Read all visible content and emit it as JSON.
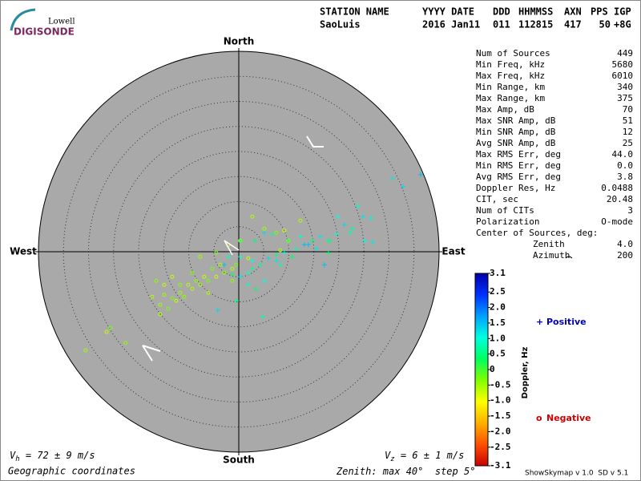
{
  "logo": {
    "top": "Lowell",
    "bottom": "DIGISONDE"
  },
  "header": {
    "labels": [
      "STATION NAME",
      "YYYY DATE",
      "DDD",
      "HHMMSS",
      "AXN",
      "PPS",
      "IGP"
    ],
    "values": [
      "SaoLuis",
      "2016 Jan11",
      "011",
      "112815",
      "417",
      "50",
      "+8G"
    ]
  },
  "stats": {
    "rows": [
      [
        "Num of Sources",
        "449"
      ],
      [
        "Min Freq, kHz",
        "5680"
      ],
      [
        "Max Freq, kHz",
        "6010"
      ],
      [
        "Min Range, km",
        "340"
      ],
      [
        "Max Range, km",
        "375"
      ],
      [
        "Max Amp, dB",
        "70"
      ],
      [
        "Max SNR Amp, dB",
        "51"
      ],
      [
        "Min SNR Amp, dB",
        "12"
      ],
      [
        "Avg SNR Amp, dB",
        "25"
      ],
      [
        "Max RMS Err, deg",
        "44.0"
      ],
      [
        "Min RMS Err, deg",
        "0.0"
      ],
      [
        "Avg RMS Err, deg",
        "3.8"
      ],
      [
        "Doppler Res, Hz",
        "0.0488"
      ],
      [
        "CIT, sec",
        "20.48"
      ],
      [
        "Num of CITs",
        "3"
      ],
      [
        "Polarization",
        "O-mode"
      ]
    ],
    "center_title": "Center of Sources, deg:",
    "center_rows": [
      [
        "Zenith",
        "4.0"
      ],
      [
        "Azimuth",
        "200"
      ]
    ]
  },
  "footer": {
    "vh": {
      "symbol": "V",
      "sub": "h",
      "text": " = 72 ± 9 m/s"
    },
    "vz": {
      "symbol": "V",
      "sub": "z",
      "text": " = 6 ± 1 m/s"
    },
    "coordinates": "Geographic coordinates",
    "zenith_prefix": "Zenith: max ",
    "degree": "°",
    "step_prefix": "  step ",
    "version": "ShowSkymap v 1.0  SD v 5.1"
  },
  "chart_data": {
    "type": "scatter",
    "directions": {
      "north": "North",
      "south": "South",
      "west": "West",
      "east": "East"
    },
    "zenith_max": 40,
    "step": 5,
    "series": [
      {
        "name": "Positive",
        "color": "#0000c0",
        "marker": "+",
        "x": [
          36.3,
          30.7,
          32.8,
          23.8,
          19.8,
          24.8,
          26.4,
          22.2,
          25.1,
          26.7,
          17.9,
          19.5,
          16.3,
          14.7,
          13.1,
          11.5,
          9.1,
          7.5,
          5.9,
          4.3,
          2.7,
          1.9,
          0.3,
          -1.3,
          -2.9,
          -2.1,
          0.3,
          3.2,
          5.1,
          6.7,
          9.9,
          12.3,
          15.5,
          17.9,
          17.1,
          8.3,
          5.1,
          3.5,
          -4.2,
          4.8,
          -0.5,
          1.9,
          7.5,
          10.7,
          13.9,
          0.3,
          2.7,
          18.2,
          21.1,
          22.7
        ],
        "y": [
          15.4,
          14.7,
          13.0,
          9.1,
          7.0,
          7.0,
          6.7,
          3.8,
          2.2,
          1.9,
          2.2,
          3.5,
          3.0,
          2.2,
          1.4,
          0.6,
          -0.2,
          -0.6,
          -1.3,
          -2.6,
          -3.4,
          -4.2,
          -5.0,
          -4.5,
          -2.6,
          -1.0,
          -1.0,
          2.2,
          3.8,
          3.5,
          2.2,
          3.0,
          0.6,
          -0.2,
          -2.6,
          -2.6,
          -5.8,
          -7.4,
          -11.7,
          -13.0,
          -9.8,
          -6.6,
          -1.8,
          -1.0,
          1.4,
          2.2,
          -1.8,
          2.2,
          5.4,
          4.6
        ],
        "doppler": [
          1.5,
          1.2,
          1.3,
          0.9,
          1.0,
          1.2,
          1.1,
          0.8,
          1.0,
          1.2,
          0.6,
          0.9,
          1.2,
          0.4,
          1.5,
          0.8,
          1.0,
          0.5,
          1.3,
          0.7,
          0.6,
          0.9,
          1.2,
          0.4,
          1.5,
          0.8,
          1.0,
          0.5,
          1.3,
          0.7,
          0.6,
          0.9,
          1.2,
          0.4,
          1.5,
          0.8,
          1.0,
          0.5,
          1.3,
          0.7,
          0.6,
          0.9,
          1.2,
          0.4,
          1.5,
          0.8,
          1.0,
          0.5,
          1.3,
          0.7
        ]
      },
      {
        "name": "Negative",
        "color": "#d00000",
        "marker": "o",
        "x": [
          -30.6,
          -25.6,
          -26.4,
          -22.6,
          -17.3,
          -15.7,
          -14.1,
          -12.5,
          -10.9,
          -9.3,
          -7.7,
          -6.1,
          -4.5,
          -2.9,
          -1.3,
          -3.7,
          -5.3,
          -6.9,
          -8.5,
          -10.1,
          -11.7,
          -13.3,
          -14.9,
          -16.5,
          -15.7,
          -14.9,
          -4.5,
          -2.1,
          0.3,
          2.7,
          5.1,
          7.5,
          9.1,
          9.9,
          12.3,
          8.3,
          -0.5,
          1.9,
          -1.3,
          -6.1,
          -7.7,
          -9.3,
          -13.3,
          -11.7
        ],
        "y": [
          -19.7,
          -15.2,
          -16.0,
          -18.2,
          -9.0,
          -10.6,
          -11.4,
          -9.8,
          -9.0,
          -7.4,
          -6.6,
          -5.8,
          -5.0,
          -4.2,
          -3.4,
          -2.6,
          -3.4,
          -5.0,
          -5.8,
          -6.6,
          -8.2,
          -9.3,
          -6.6,
          -5.8,
          -12.5,
          -8.6,
          -0.2,
          1.4,
          2.2,
          7.0,
          4.6,
          3.8,
          4.2,
          2.2,
          6.2,
          0.3,
          -2.6,
          -1.3,
          -5.8,
          -8.2,
          -1.0,
          -4.2,
          -5.0,
          -6.6
        ],
        "doppler": [
          -0.5,
          -0.3,
          -0.7,
          -0.4,
          -0.6,
          -0.5,
          -0.3,
          -0.7,
          -0.4,
          -0.6,
          -0.5,
          -0.3,
          -0.7,
          -0.4,
          -0.6,
          -0.5,
          -0.3,
          -0.7,
          -0.4,
          -0.6,
          -0.5,
          -0.3,
          -0.7,
          -0.4,
          -0.6,
          -0.5,
          -0.3,
          -0.7,
          -0.4,
          -0.6,
          -0.5,
          -0.3,
          -0.7,
          -0.4,
          -0.6,
          -0.5,
          -0.3,
          -0.7,
          -0.4,
          -0.6,
          -0.5,
          -0.3,
          -0.7,
          -0.4
        ]
      }
    ],
    "colorbar": {
      "label": "Doppler, Hz",
      "lim": [
        -3.1,
        3.1
      ],
      "ticks": [
        3.1,
        2.5,
        {
          "value": 2,
          "label": "2.0"
        },
        1.5,
        {
          "value": 1,
          "label": "1.0"
        },
        0.5,
        0,
        -0.5,
        {
          "value": -1,
          "label": "-1.0"
        },
        -1.5,
        {
          "value": -2,
          "label": "-2.0"
        },
        -2.5,
        -3.1
      ],
      "colors": [
        "#c80000",
        "#ff5000",
        "#ffb000",
        "#ffff00",
        "#80ff00",
        "#00ff60",
        "#00ffe0",
        "#00a0ff",
        "#0030ff",
        "#0000a8"
      ]
    },
    "disc_color": "#a9a9a9"
  }
}
